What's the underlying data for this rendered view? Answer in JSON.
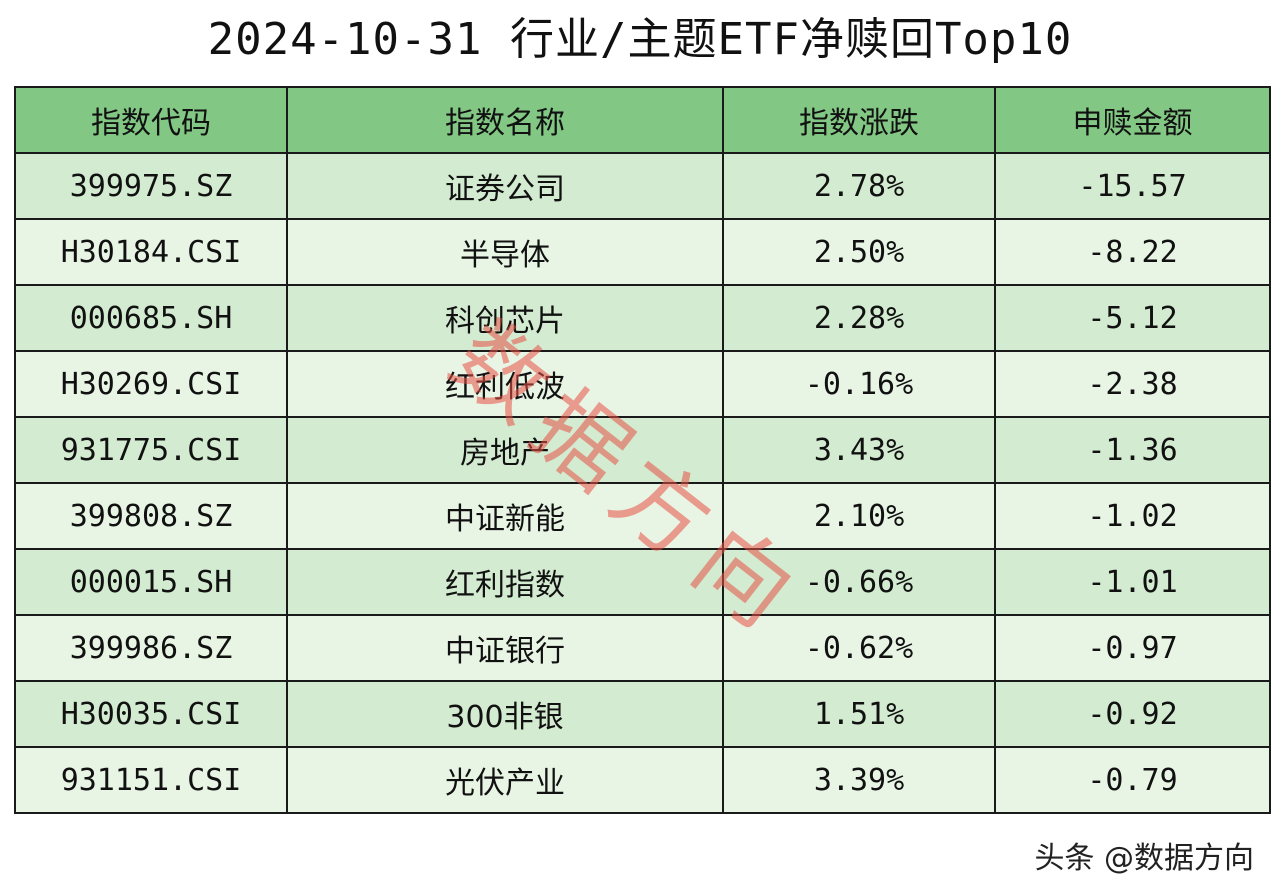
{
  "chart_data": {
    "type": "table",
    "title": "2024-10-31 行业/主题ETF净赎回Top10",
    "columns": [
      "指数代码",
      "指数名称",
      "指数涨跌",
      "申赎金额"
    ],
    "rows": [
      [
        "399975.SZ",
        "证券公司",
        "2.78%",
        "-15.57"
      ],
      [
        "H30184.CSI",
        "半导体",
        "2.50%",
        "-8.22"
      ],
      [
        "000685.SH",
        "科创芯片",
        "2.28%",
        "-5.12"
      ],
      [
        "H30269.CSI",
        "红利低波",
        "-0.16%",
        "-2.38"
      ],
      [
        "931775.CSI",
        "房地产",
        "3.43%",
        "-1.36"
      ],
      [
        "399808.SZ",
        "中证新能",
        "2.10%",
        "-1.02"
      ],
      [
        "000015.SH",
        "红利指数",
        "-0.66%",
        "-1.01"
      ],
      [
        "399986.SZ",
        "中证银行",
        "-0.62%",
        "-0.97"
      ],
      [
        "H30035.CSI",
        "300非银",
        "1.51%",
        "-0.92"
      ],
      [
        "931151.CSI",
        "光伏产业",
        "3.39%",
        "-0.79"
      ]
    ]
  },
  "watermark": {
    "chars": [
      "数",
      "据",
      "方",
      "向"
    ],
    "color": "#e85046"
  },
  "credit": "头条 @数据方向",
  "colors": {
    "header_bg": "#82c884",
    "row_odd_bg": "#d3ebd0",
    "row_even_bg": "#e8f5e5"
  }
}
